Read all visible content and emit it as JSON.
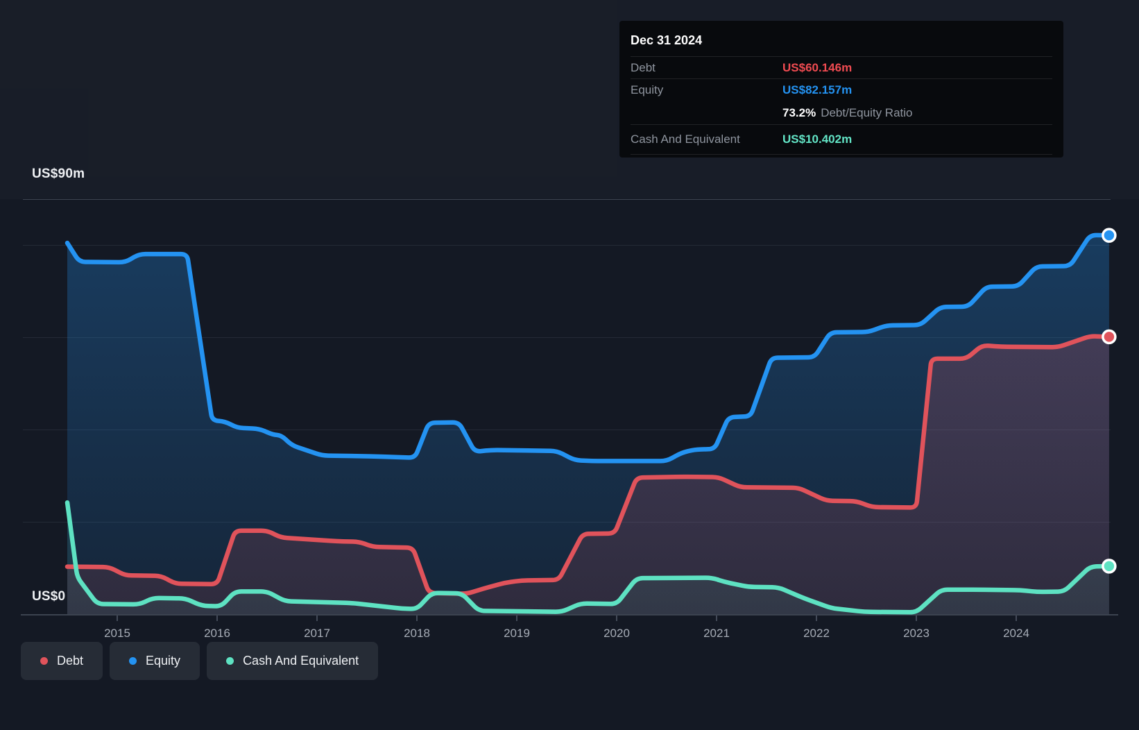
{
  "y_axis": {
    "top_label": "US$90m",
    "zero_label": "US$0"
  },
  "x_axis": {
    "years": [
      "2015",
      "2016",
      "2017",
      "2018",
      "2019",
      "2020",
      "2021",
      "2022",
      "2023",
      "2024"
    ]
  },
  "tooltip": {
    "date": "Dec 31 2024",
    "debt_label": "Debt",
    "debt_value": "US$60.146m",
    "equity_label": "Equity",
    "equity_value": "US$82.157m",
    "ratio_value": "73.2%",
    "ratio_label": "Debt/Equity Ratio",
    "cash_label": "Cash And Equivalent",
    "cash_value": "US$10.402m"
  },
  "legend": {
    "items": [
      {
        "label": "Debt",
        "color": "#e0535b"
      },
      {
        "label": "Equity",
        "color": "#2493f2"
      },
      {
        "label": "Cash And Equivalent",
        "color": "#5ee2c2"
      }
    ]
  },
  "colors": {
    "background": "#141924",
    "grid_minor": "#242a36",
    "grid_major": "#3c4350",
    "debt": "#e0535b",
    "equity": "#2493f2",
    "cash": "#5ee2c2"
  },
  "chart_data": {
    "type": "area",
    "title": "",
    "xlabel": "",
    "ylabel": "US$ millions",
    "x_range": [
      2014.5,
      2024.95
    ],
    "ylim": [
      0,
      90
    ],
    "grid": "horizontal",
    "legend_position": "bottom-left",
    "gridlines": [
      {
        "value": 90,
        "major": true
      },
      {
        "value": 80,
        "major": false
      },
      {
        "value": 60,
        "major": false
      },
      {
        "value": 40,
        "major": false
      },
      {
        "value": 20,
        "major": false
      },
      {
        "value": 0,
        "major": true
      }
    ],
    "series": [
      {
        "name": "Equity",
        "color": "#2493f2",
        "fill_top": "rgba(36,147,242,0.30)",
        "fill_bottom": "rgba(36,147,242,0.10)",
        "end_value": 82.157,
        "points": [
          [
            2014.5,
            80.5
          ],
          [
            2014.62,
            76.4
          ],
          [
            2015.08,
            76.3
          ],
          [
            2015.22,
            78.1
          ],
          [
            2015.7,
            78.1
          ],
          [
            2015.95,
            42.0
          ],
          [
            2016.08,
            41.8
          ],
          [
            2016.2,
            40.4
          ],
          [
            2016.42,
            40.2
          ],
          [
            2016.56,
            38.9
          ],
          [
            2016.64,
            38.8
          ],
          [
            2016.75,
            36.6
          ],
          [
            2017.05,
            34.4
          ],
          [
            2017.6,
            34.2
          ],
          [
            2017.98,
            33.9
          ],
          [
            2018.12,
            41.5
          ],
          [
            2018.42,
            41.6
          ],
          [
            2018.58,
            35.2
          ],
          [
            2018.75,
            35.6
          ],
          [
            2019.4,
            35.4
          ],
          [
            2019.58,
            33.4
          ],
          [
            2019.75,
            33.2
          ],
          [
            2020.5,
            33.2
          ],
          [
            2020.65,
            35.0
          ],
          [
            2020.78,
            35.7
          ],
          [
            2020.98,
            35.8
          ],
          [
            2021.12,
            42.7
          ],
          [
            2021.34,
            42.9
          ],
          [
            2021.55,
            55.6
          ],
          [
            2021.98,
            55.7
          ],
          [
            2022.14,
            61.1
          ],
          [
            2022.52,
            61.2
          ],
          [
            2022.7,
            62.6
          ],
          [
            2023.04,
            62.7
          ],
          [
            2023.24,
            66.6
          ],
          [
            2023.52,
            66.7
          ],
          [
            2023.7,
            71.0
          ],
          [
            2024.02,
            71.1
          ],
          [
            2024.2,
            75.4
          ],
          [
            2024.54,
            75.5
          ],
          [
            2024.74,
            82.2
          ],
          [
            2024.93,
            82.157
          ]
        ]
      },
      {
        "name": "Debt",
        "color": "#e0535b",
        "fill_top": "rgba(224,83,91,0.26)",
        "fill_bottom": "rgba(224,83,91,0.12)",
        "end_value": 60.146,
        "points": [
          [
            2014.5,
            10.3
          ],
          [
            2014.92,
            10.2
          ],
          [
            2015.08,
            8.4
          ],
          [
            2015.44,
            8.3
          ],
          [
            2015.58,
            6.6
          ],
          [
            2016.0,
            6.5
          ],
          [
            2016.18,
            18.1
          ],
          [
            2016.5,
            18.1
          ],
          [
            2016.64,
            16.6
          ],
          [
            2017.2,
            15.8
          ],
          [
            2017.42,
            15.7
          ],
          [
            2017.56,
            14.6
          ],
          [
            2017.96,
            14.4
          ],
          [
            2018.12,
            4.6
          ],
          [
            2018.5,
            4.4
          ],
          [
            2018.66,
            5.5
          ],
          [
            2018.88,
            6.8
          ],
          [
            2019.05,
            7.3
          ],
          [
            2019.42,
            7.4
          ],
          [
            2019.66,
            17.4
          ],
          [
            2019.98,
            17.5
          ],
          [
            2020.2,
            29.6
          ],
          [
            2020.65,
            29.8
          ],
          [
            2021.02,
            29.7
          ],
          [
            2021.24,
            27.5
          ],
          [
            2021.82,
            27.4
          ],
          [
            2022.1,
            24.6
          ],
          [
            2022.4,
            24.5
          ],
          [
            2022.56,
            23.2
          ],
          [
            2023.0,
            23.1
          ],
          [
            2023.15,
            55.4
          ],
          [
            2023.5,
            55.4
          ],
          [
            2023.66,
            58.3
          ],
          [
            2023.85,
            58.0
          ],
          [
            2024.42,
            57.9
          ],
          [
            2024.74,
            60.3
          ],
          [
            2024.93,
            60.146
          ]
        ]
      },
      {
        "name": "Cash And Equivalent",
        "color": "#5ee2c2",
        "fill_top": "rgba(94,226,194,0.22)",
        "fill_bottom": "rgba(94,226,194,0.07)",
        "end_value": 10.402,
        "points": [
          [
            2014.5,
            24.2
          ],
          [
            2014.6,
            8.0
          ],
          [
            2014.8,
            2.2
          ],
          [
            2015.22,
            2.1
          ],
          [
            2015.36,
            3.5
          ],
          [
            2015.68,
            3.4
          ],
          [
            2015.85,
            1.8
          ],
          [
            2016.04,
            1.7
          ],
          [
            2016.18,
            4.9
          ],
          [
            2016.5,
            4.9
          ],
          [
            2016.68,
            2.8
          ],
          [
            2017.35,
            2.4
          ],
          [
            2017.85,
            1.2
          ],
          [
            2018.0,
            1.1
          ],
          [
            2018.15,
            4.6
          ],
          [
            2018.45,
            4.5
          ],
          [
            2018.62,
            0.7
          ],
          [
            2019.45,
            0.5
          ],
          [
            2019.64,
            2.3
          ],
          [
            2020.0,
            2.2
          ],
          [
            2020.2,
            7.8
          ],
          [
            2020.95,
            7.9
          ],
          [
            2021.08,
            7.0
          ],
          [
            2021.32,
            5.9
          ],
          [
            2021.62,
            5.8
          ],
          [
            2021.88,
            3.4
          ],
          [
            2022.15,
            1.3
          ],
          [
            2022.48,
            0.5
          ],
          [
            2023.0,
            0.4
          ],
          [
            2023.25,
            5.3
          ],
          [
            2023.62,
            5.3
          ],
          [
            2024.04,
            5.2
          ],
          [
            2024.22,
            4.8
          ],
          [
            2024.48,
            4.9
          ],
          [
            2024.74,
            10.3
          ],
          [
            2024.93,
            10.402
          ]
        ]
      }
    ]
  }
}
